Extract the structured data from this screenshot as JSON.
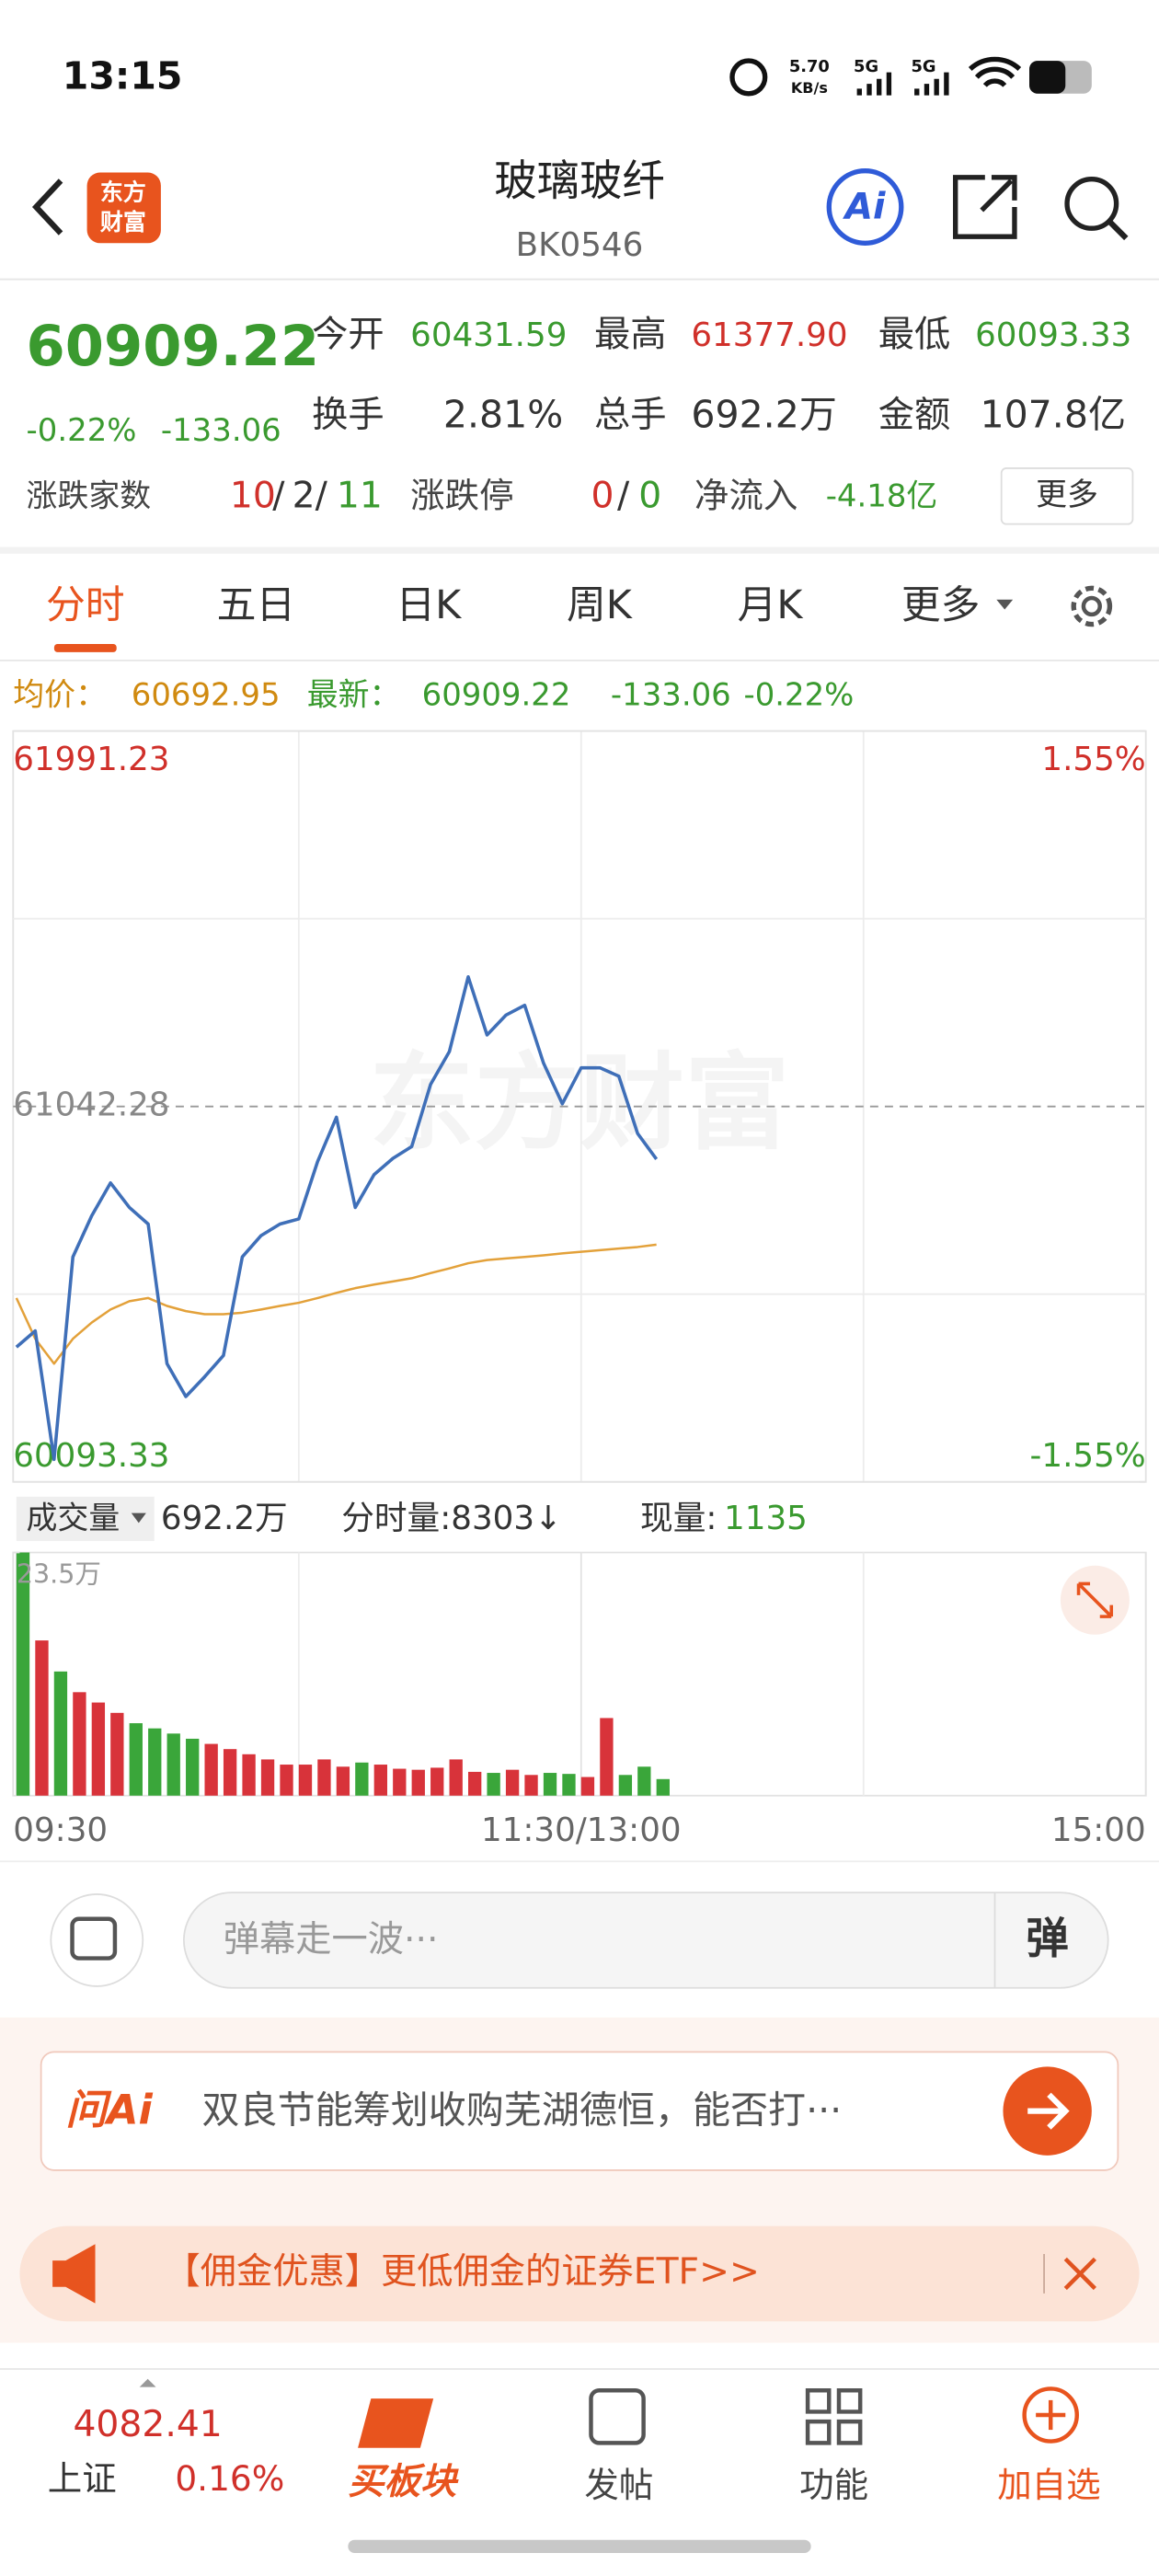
{
  "status_bar": {
    "time": "13:15",
    "speed": "5.70",
    "speed_unit": "KB/s",
    "net1": "5G",
    "net2": "5G"
  },
  "header": {
    "logo_top": "东方",
    "logo_bottom": "财富",
    "title": "玻璃玻纤",
    "code": "BK0546",
    "ai": "Ai"
  },
  "quote": {
    "price": "60909.22",
    "change_pct": "-0.22%",
    "change": "-133.06",
    "open_label": "今开",
    "open": "60431.59",
    "high_label": "最高",
    "high": "61377.90",
    "low_label": "最低",
    "low": "60093.33",
    "turnover_label": "换手",
    "turnover": "2.81%",
    "volume_label": "总手",
    "volume": "692.2万",
    "amount_label": "金额",
    "amount": "107.8亿",
    "breadth_label": "涨跌家数",
    "breadth_up": "10",
    "separator": "/",
    "breadth_flat": "2",
    "breadth_down": "11",
    "limit_label": "涨跌停",
    "limit_up": "0",
    "limit_down": "0",
    "inflow_label": "净流入",
    "inflow": "-4.18亿",
    "more": "更多"
  },
  "tabs": [
    "分时",
    "五日",
    "日K",
    "周K",
    "月K",
    "更多"
  ],
  "chart_info": {
    "avg": "60692.95",
    "latest": "60909.22",
    "change": "-133.06",
    "change_pct": "-0.22%"
  },
  "volume_info": {
    "label": "成交量",
    "total": "692.2万",
    "minute_volume": "分时量:8303↓",
    "current_label": "现量:",
    "current": "1135"
  },
  "chart_data": [
    {
      "type": "line",
      "watermark": "东方财富",
      "x": [
        "09:30",
        "09:34",
        "09:38",
        "09:42",
        "09:46",
        "09:50",
        "09:54",
        "09:58",
        "10:02",
        "10:06",
        "10:10",
        "10:14",
        "10:18",
        "10:22",
        "10:26",
        "10:30",
        "10:34",
        "10:38",
        "10:42",
        "10:46",
        "10:50",
        "10:54",
        "10:58",
        "11:02",
        "11:06",
        "11:10",
        "11:14",
        "11:18",
        "11:22",
        "11:26",
        "11:30",
        "13:04",
        "13:08",
        "13:12",
        "13:16"
      ],
      "xlim": [
        "09:30",
        "15:00"
      ],
      "series": [
        {
          "name": "最新：",
          "color": "#3f6fb8",
          "values": [
            60434,
            60475,
            60150,
            60662,
            60766,
            60849,
            60787,
            60745,
            60392,
            60309,
            60359,
            60413,
            60662,
            60716,
            60745,
            60758,
            60903,
            61015,
            60787,
            60870,
            60911,
            60941,
            61098,
            61181,
            61370,
            61223,
            61273,
            61298,
            61152,
            61049,
            61140,
            61140,
            61119,
            60974,
            60909.22
          ]
        },
        {
          "name": "均价：",
          "color": "#e3a13a",
          "values": [
            60558,
            60455,
            60392,
            60455,
            60496,
            60529,
            60550,
            60558,
            60538,
            60525,
            60517,
            60517,
            60521,
            60529,
            60538,
            60546,
            60558,
            60571,
            60583,
            60592,
            60600,
            60608,
            60621,
            60633,
            60646,
            60654,
            60658,
            60662,
            60666,
            60671,
            60675,
            60679,
            60683,
            60687,
            60692.95
          ]
        }
      ],
      "ylim": [
        60093.33,
        61991.23
      ],
      "yticks": [
        61991.23,
        61042.28,
        60093.33
      ],
      "y2lim": [
        -1.55,
        1.55
      ],
      "y2ticks": [
        {
          "value": 1.55,
          "label": "1.55%"
        },
        {
          "value": -1.55,
          "label": "-1.55%"
        }
      ],
      "up_color": "#d0302a",
      "down_color": "#3a9a2f",
      "flat_color": "#888888"
    },
    {
      "type": "bar",
      "x": [
        "09:30",
        "09:34",
        "09:38",
        "09:42",
        "09:46",
        "09:50",
        "09:54",
        "09:58",
        "10:02",
        "10:06",
        "10:10",
        "10:14",
        "10:18",
        "10:22",
        "10:26",
        "10:30",
        "10:34",
        "10:38",
        "10:42",
        "10:46",
        "10:50",
        "10:54",
        "10:58",
        "11:02",
        "11:06",
        "11:10",
        "11:14",
        "11:18",
        "11:22",
        "11:26",
        "11:30",
        "13:04",
        "13:08",
        "13:12",
        "13:16"
      ],
      "xlim": [
        "09:30",
        "15:00"
      ],
      "xticks": [
        "09:30",
        {
          "value": "11:30",
          "label": "11:30/13:00"
        },
        "15:00"
      ],
      "values": [
        23.5,
        15,
        12,
        10,
        9,
        8,
        7,
        6.5,
        6,
        5.5,
        5,
        4.5,
        4,
        3.5,
        3,
        3,
        3.5,
        2.8,
        3.2,
        3,
        2.6,
        2.5,
        2.7,
        3.5,
        2.3,
        2.2,
        2.5,
        2,
        2.2,
        2.1,
        1.8,
        7.5,
        2,
        2.8,
        1.6
      ],
      "ylim": [
        0,
        23.5
      ],
      "yticks": [
        {
          "value": 23.5,
          "label": "23.5万"
        }
      ],
      "up_color": "#d8333a",
      "down_color": "#3aa63a"
    }
  ],
  "comment": {
    "placeholder": "弹幕走一波···",
    "button": "弹"
  },
  "ai_bar": {
    "brand": "问Ai",
    "text": "双良节能筹划收购芜湖德恒，能否打···"
  },
  "promo": {
    "text": "【佣金优惠】更低佣金的证券ETF>>"
  },
  "bottom_nav": {
    "index_value": "4082.41",
    "index_name": "上证",
    "index_change": "0.16%",
    "buy": "买板块",
    "post": "发帖",
    "functions": "功能",
    "add": "加自选"
  }
}
